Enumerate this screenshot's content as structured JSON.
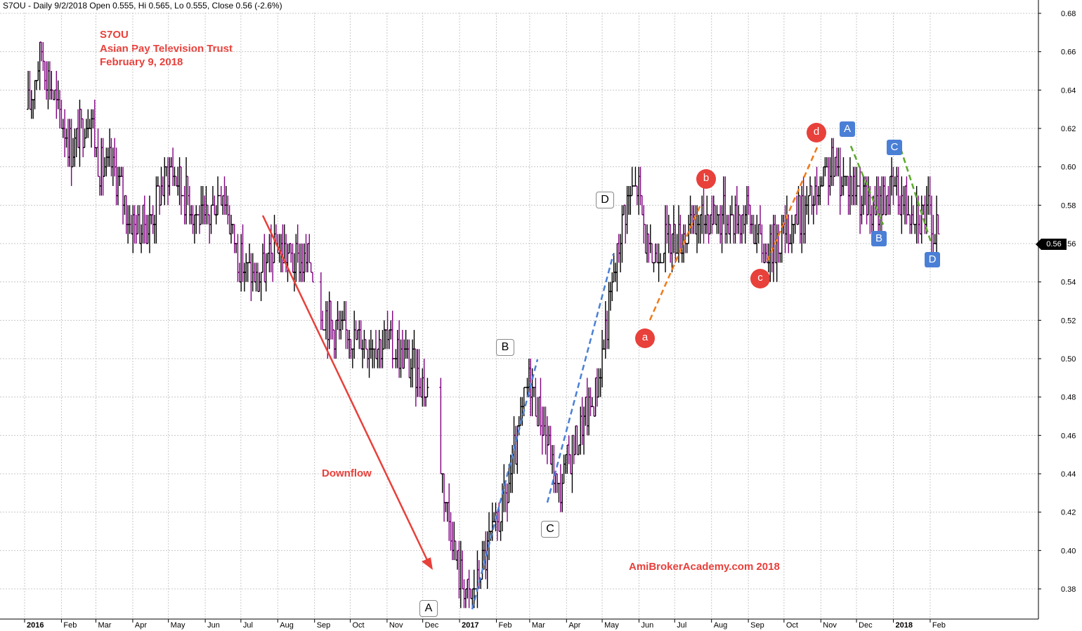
{
  "header": {
    "text": "S7OU - Daily 9/2/2018 Open 0.555, Hi 0.565, Lo 0.555, Close 0.56 (-2.6%)"
  },
  "title_lines": [
    "S7OU",
    "Asian Pay Television Trust",
    "February 9, 2018"
  ],
  "annotations": {
    "downflow": "Downflow",
    "brand": "AmiBrokerAcademy.com  2018",
    "white_labels": [
      "A",
      "B",
      "C",
      "D"
    ],
    "red_labels": [
      "a",
      "b",
      "c",
      "d"
    ],
    "blue_labels": [
      "A",
      "B",
      "C",
      "D"
    ],
    "last_price_tag": "0.56"
  },
  "colors": {
    "up_bar": "#000000",
    "down_bar": "#800080",
    "title": "#e8403a",
    "grid": "#c8c8c8",
    "blue_dash": "#4a7fd6",
    "orange_dash": "#f07a18",
    "green_dash": "#5aaa2a",
    "arrow": "#e8403a"
  },
  "chart_data": {
    "type": "ohlc",
    "symbol": "S7OU",
    "interval": "daily",
    "y_axis": {
      "min": 0.365,
      "max": 0.69,
      "ticks": [
        0.38,
        0.4,
        0.42,
        0.44,
        0.46,
        0.48,
        0.5,
        0.52,
        0.54,
        0.56,
        0.58,
        0.6,
        0.62,
        0.64,
        0.66,
        0.68
      ],
      "position": "right"
    },
    "x_axis": {
      "labels": [
        "2016",
        "Feb",
        "Mar",
        "Apr",
        "May",
        "Jun",
        "Jul",
        "Aug",
        "Sep",
        "Oct",
        "Nov",
        "Dec",
        "2017",
        "Feb",
        "Mar",
        "Apr",
        "May",
        "Jun",
        "Jul",
        "Aug",
        "Sep",
        "Oct",
        "Nov",
        "Dec",
        "2018",
        "Feb"
      ],
      "bold_labels": [
        "2016",
        "2017",
        "2018"
      ]
    },
    "grid": true,
    "close_path": [
      [
        "2016-01-04",
        0.63
      ],
      [
        "2016-01-15",
        0.66
      ],
      [
        "2016-01-28",
        0.63
      ],
      [
        "2016-02-10",
        0.61
      ],
      [
        "2016-02-25",
        0.63
      ],
      [
        "2016-03-04",
        0.6
      ],
      [
        "2016-03-15",
        0.6
      ],
      [
        "2016-03-31",
        0.57
      ],
      [
        "2016-04-15",
        0.57
      ],
      [
        "2016-05-02",
        0.6
      ],
      [
        "2016-05-20",
        0.58
      ],
      [
        "2016-06-01",
        0.57
      ],
      [
        "2016-06-15",
        0.59
      ],
      [
        "2016-06-30",
        0.55
      ],
      [
        "2016-07-15",
        0.54
      ],
      [
        "2016-07-31",
        0.56
      ],
      [
        "2016-08-15",
        0.55
      ],
      [
        "2016-08-31",
        0.55
      ],
      [
        "2016-09-06",
        0.525
      ],
      [
        "2016-09-20",
        0.515
      ],
      [
        "2016-10-15",
        0.51
      ],
      [
        "2016-10-31",
        0.51
      ],
      [
        "2016-11-15",
        0.5
      ],
      [
        "2016-11-30",
        0.49
      ],
      [
        "2016-12-10",
        0.47
      ],
      [
        "2016-12-20",
        0.43
      ],
      [
        "2016-12-31",
        0.39
      ],
      [
        "2017-01-10",
        0.375
      ],
      [
        "2017-01-25",
        0.4
      ],
      [
        "2017-02-10",
        0.43
      ],
      [
        "2017-03-01",
        0.49
      ],
      [
        "2017-03-15",
        0.46
      ],
      [
        "2017-03-25",
        0.43
      ],
      [
        "2017-04-10",
        0.46
      ],
      [
        "2017-04-25",
        0.48
      ],
      [
        "2017-05-10",
        0.54
      ],
      [
        "2017-05-20",
        0.58
      ],
      [
        "2017-05-31",
        0.59
      ],
      [
        "2017-06-10",
        0.55
      ],
      [
        "2017-06-20",
        0.56
      ],
      [
        "2017-07-10",
        0.565
      ],
      [
        "2017-07-31",
        0.575
      ],
      [
        "2017-08-31",
        0.575
      ],
      [
        "2017-09-15",
        0.555
      ],
      [
        "2017-09-30",
        0.565
      ],
      [
        "2017-10-15",
        0.575
      ],
      [
        "2017-10-31",
        0.585
      ],
      [
        "2017-11-10",
        0.6
      ],
      [
        "2017-11-20",
        0.595
      ],
      [
        "2017-11-30",
        0.59
      ],
      [
        "2017-12-15",
        0.575
      ],
      [
        "2017-12-31",
        0.59
      ],
      [
        "2018-01-15",
        0.58
      ],
      [
        "2018-01-31",
        0.575
      ],
      [
        "2018-02-09",
        0.56
      ]
    ],
    "data_gaps": [
      [
        "2016-08-31",
        "2016-09-06"
      ],
      [
        "2016-12-05",
        "2016-12-15"
      ]
    ],
    "last_close": 0.56
  }
}
